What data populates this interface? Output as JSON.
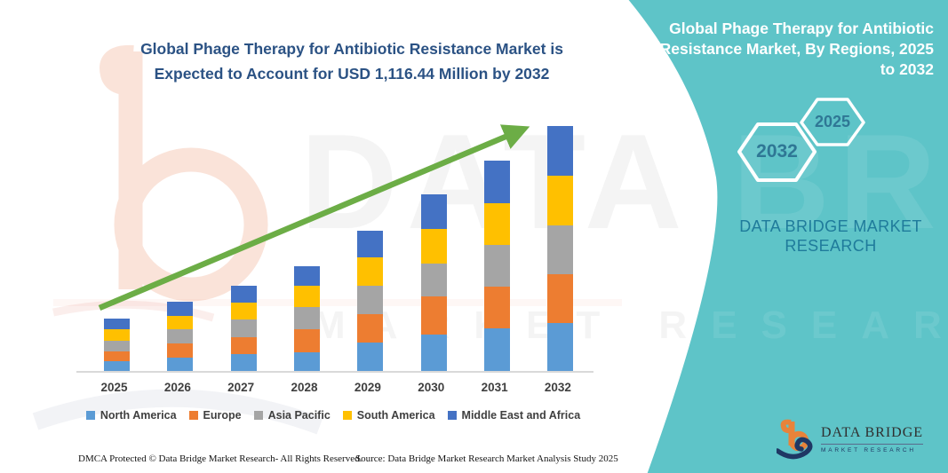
{
  "title": {
    "full": "Global Phage Therapy for Antibiotic Resistance Market is Expected to Account for USD 1,116.44 Million by 2032",
    "lines": [
      "Global Phage Therapy for Antibiotic Resistance Market is",
      "Expected to Account for USD 1,116.44 Million by 2032"
    ],
    "color": "#2B5284"
  },
  "chart_data": {
    "type": "bar",
    "stacked": true,
    "title": "Global Phage Therapy for Antibiotic Resistance Market, By Regions, 2025 to 2032",
    "unit": "USD Million",
    "categories": [
      "2025",
      "2026",
      "2027",
      "2028",
      "2029",
      "2030",
      "2031",
      "2032"
    ],
    "series": [
      {
        "name": "North America",
        "color": "#5B9BD5",
        "values": [
          43.3,
          62.0,
          77.5,
          86.2,
          128.2,
          167.0,
          194.2,
          219.7
        ]
      },
      {
        "name": "Europe",
        "color": "#ED7D31",
        "values": [
          45.7,
          63.1,
          77.9,
          105.2,
          132.3,
          171.0,
          191.0,
          222.5
        ]
      },
      {
        "name": "Asia Pacific",
        "color": "#A5A5A5",
        "values": [
          48.5,
          63.5,
          77.7,
          98.3,
          128.2,
          151.0,
          189.3,
          222.5
        ]
      },
      {
        "name": "South America",
        "color": "#FFC000",
        "values": [
          51.4,
          63.6,
          77.6,
          97.1,
          130.7,
          159.0,
          191.5,
          226.5
        ]
      },
      {
        "name": "Middle East and Africa",
        "color": "#4472C4",
        "values": [
          49.8,
          63.3,
          77.6,
          90.5,
          119.7,
          157.0,
          192.7,
          225.24
        ]
      }
    ],
    "totals_estimated": [
      238.7,
      315.5,
      388.3,
      477.3,
      639.1,
      805.0,
      958.7,
      1116.44
    ],
    "ylim": [
      0,
      1116.44
    ],
    "grid": false,
    "y_axis_visible": false,
    "legend_position": "bottom",
    "trend_arrow_color": "#6CAD46"
  },
  "right_panel": {
    "bg_color": "#5EC4C8",
    "heading_lines": [
      "Global Phage Therapy for Antibiotic",
      "Resistance Market, By Regions, 2025",
      "to 2032"
    ],
    "hexagons": [
      {
        "label": "2032"
      },
      {
        "label": "2025"
      }
    ],
    "brand_lines": [
      "DATA BRIDGE MARKET",
      "RESEARCH"
    ],
    "logo": {
      "name": "DATA BRIDGE",
      "subtitle": "MARKET RESEARCH",
      "orange": "#E8833A",
      "navy": "#1F3864"
    }
  },
  "watermark": {
    "line1": "DATA BRIDGE",
    "line2": "MARKET RESEARCH"
  },
  "footer": {
    "dmca": "DMCA Protected © Data Bridge Market Research-  All Rights Reserved.",
    "source": "Source: Data Bridge Market Research  Market Analysis Study 2025"
  }
}
